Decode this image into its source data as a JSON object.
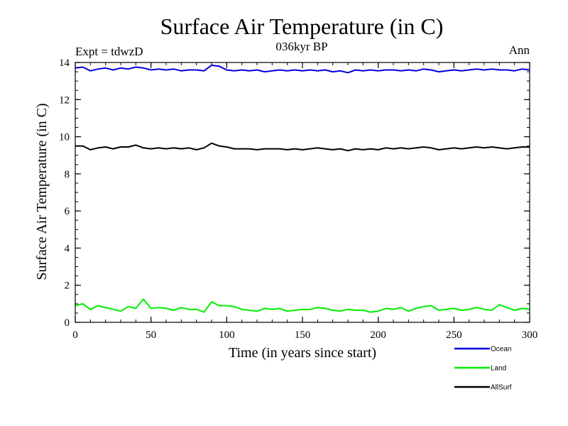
{
  "chart_data": {
    "type": "line",
    "title": "Surface Air Temperature (in C)",
    "subtitle": "036kyr BP",
    "left_annotation": "Expt = tdwzD",
    "right_annotation": "Ann",
    "xlabel": "Time (in years since start)",
    "ylabel": "Surface Air Temperature (in C)",
    "xlim": [
      0,
      300
    ],
    "ylim": [
      0,
      14
    ],
    "x_ticks": [
      "0",
      "50",
      "100",
      "150",
      "200",
      "250",
      "300"
    ],
    "y_ticks": [
      "0",
      "2",
      "4",
      "6",
      "8",
      "10",
      "12",
      "14"
    ],
    "grid": false,
    "legend_position": "bottom-right, below plot",
    "x": [
      0,
      5,
      10,
      15,
      20,
      25,
      30,
      35,
      40,
      45,
      50,
      55,
      60,
      65,
      70,
      75,
      80,
      85,
      90,
      95,
      100,
      105,
      110,
      115,
      120,
      125,
      130,
      135,
      140,
      145,
      150,
      155,
      160,
      165,
      170,
      175,
      180,
      185,
      190,
      195,
      200,
      205,
      210,
      215,
      220,
      225,
      230,
      235,
      240,
      245,
      250,
      255,
      260,
      265,
      270,
      275,
      280,
      285,
      290,
      295,
      300
    ],
    "series": [
      {
        "name": "Ocean",
        "color": "#0000dd",
        "values": [
          13.7,
          13.75,
          13.55,
          13.65,
          13.7,
          13.6,
          13.7,
          13.65,
          13.75,
          13.7,
          13.6,
          13.65,
          13.6,
          13.65,
          13.55,
          13.6,
          13.6,
          13.55,
          13.85,
          13.8,
          13.6,
          13.55,
          13.6,
          13.55,
          13.6,
          13.5,
          13.55,
          13.6,
          13.55,
          13.6,
          13.55,
          13.6,
          13.55,
          13.6,
          13.5,
          13.55,
          13.45,
          13.6,
          13.55,
          13.6,
          13.55,
          13.6,
          13.6,
          13.55,
          13.6,
          13.55,
          13.65,
          13.6,
          13.5,
          13.55,
          13.6,
          13.55,
          13.6,
          13.65,
          13.6,
          13.65,
          13.6,
          13.6,
          13.55,
          13.65,
          13.6
        ]
      },
      {
        "name": "Land",
        "color": "#00ee00",
        "values": [
          0.9,
          1.0,
          0.7,
          0.9,
          0.8,
          0.7,
          0.6,
          0.85,
          0.75,
          1.25,
          0.75,
          0.8,
          0.75,
          0.65,
          0.8,
          0.7,
          0.7,
          0.55,
          1.1,
          0.9,
          0.9,
          0.85,
          0.7,
          0.65,
          0.6,
          0.75,
          0.7,
          0.75,
          0.6,
          0.65,
          0.7,
          0.7,
          0.8,
          0.75,
          0.65,
          0.6,
          0.7,
          0.65,
          0.65,
          0.55,
          0.6,
          0.75,
          0.7,
          0.8,
          0.6,
          0.75,
          0.85,
          0.9,
          0.65,
          0.7,
          0.75,
          0.65,
          0.7,
          0.8,
          0.7,
          0.65,
          0.95,
          0.8,
          0.65,
          0.75,
          0.7
        ]
      },
      {
        "name": "AllSurf",
        "color": "#000000",
        "values": [
          9.5,
          9.5,
          9.3,
          9.4,
          9.45,
          9.35,
          9.45,
          9.45,
          9.55,
          9.4,
          9.35,
          9.4,
          9.35,
          9.4,
          9.35,
          9.4,
          9.3,
          9.4,
          9.65,
          9.5,
          9.45,
          9.35,
          9.35,
          9.35,
          9.3,
          9.35,
          9.35,
          9.35,
          9.3,
          9.35,
          9.3,
          9.35,
          9.4,
          9.35,
          9.3,
          9.35,
          9.25,
          9.35,
          9.3,
          9.35,
          9.3,
          9.4,
          9.35,
          9.4,
          9.35,
          9.4,
          9.45,
          9.4,
          9.3,
          9.35,
          9.4,
          9.35,
          9.4,
          9.45,
          9.4,
          9.45,
          9.4,
          9.35,
          9.4,
          9.45,
          9.45
        ]
      }
    ]
  }
}
